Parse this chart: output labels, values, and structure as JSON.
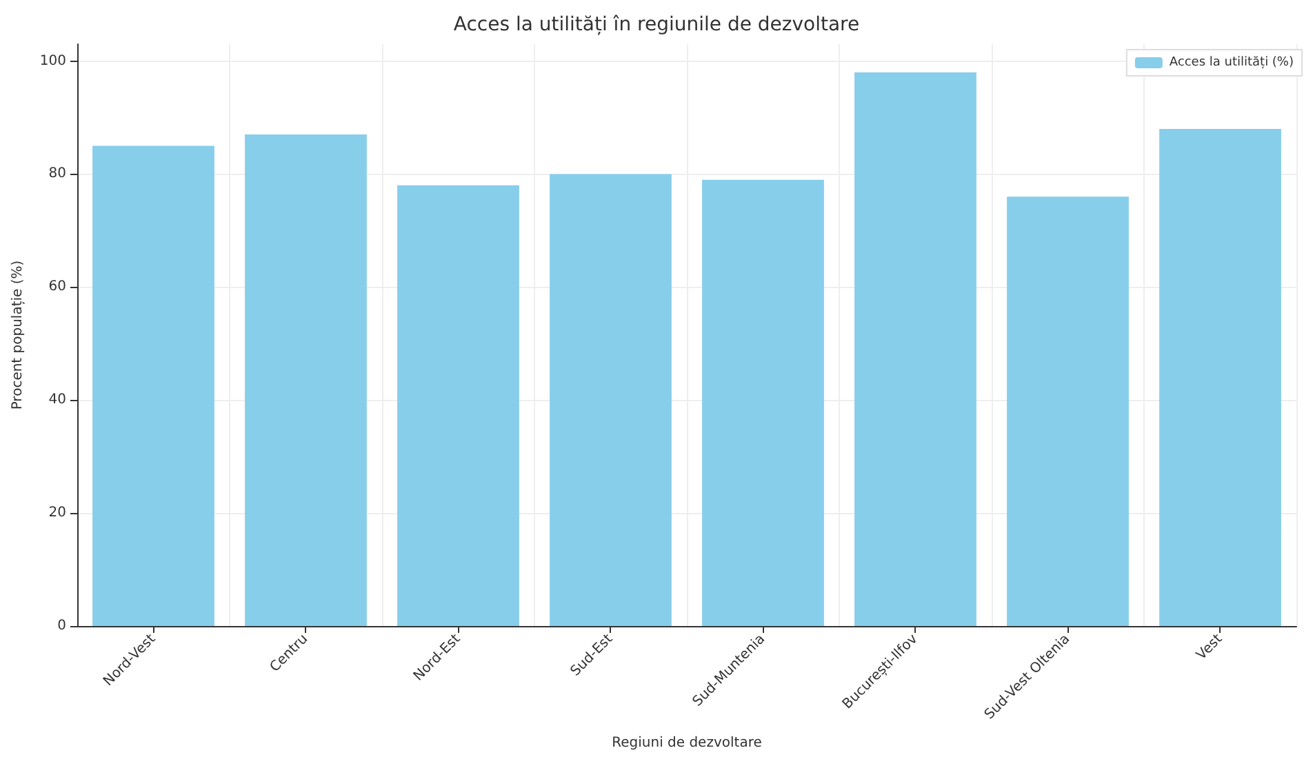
{
  "chart_data": {
    "type": "bar",
    "title": "Acces la utilități în regiunile de dezvoltare",
    "xlabel": "Regiuni de dezvoltare",
    "ylabel": "Procent populație (%)",
    "categories": [
      "Nord-Vest",
      "Centru",
      "Nord-Est",
      "Sud-Est",
      "Sud-Muntenia",
      "București-Ilfov",
      "Sud-Vest Oltenia",
      "Vest"
    ],
    "series": [
      {
        "name": "Acces la utilități (%)",
        "color": "#87ceeb",
        "values": [
          85,
          87,
          78,
          80,
          79,
          98,
          76,
          88
        ]
      }
    ],
    "ylim": [
      0,
      103
    ],
    "yticks": [
      0,
      20,
      40,
      60,
      80,
      100
    ],
    "grid": true,
    "legend": "top right"
  }
}
